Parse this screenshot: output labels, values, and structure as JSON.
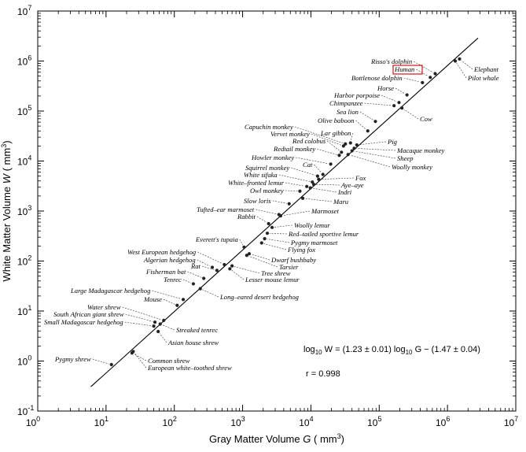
{
  "chart_data": {
    "type": "scatter",
    "xlabel": "Gray Matter Volume",
    "xlabel_var": "G",
    "xlabel_unit": "( mm",
    "xlabel_unit_exp": "3",
    "xlabel_unit_close": ")",
    "ylabel": "White Matter Volume",
    "ylabel_var": "W",
    "ylabel_unit": "( mm",
    "ylabel_unit_exp": "3",
    "ylabel_unit_close": ")",
    "xscale": "log",
    "yscale": "log",
    "xlim": [
      1,
      10000000
    ],
    "ylim": [
      0.1,
      10000000
    ],
    "x_ticks": [
      {
        "base": "10",
        "exp": "0",
        "value": 1
      },
      {
        "base": "10",
        "exp": "1",
        "value": 10
      },
      {
        "base": "10",
        "exp": "2",
        "value": 100
      },
      {
        "base": "10",
        "exp": "3",
        "value": 1000
      },
      {
        "base": "10",
        "exp": "4",
        "value": 10000
      },
      {
        "base": "10",
        "exp": "5",
        "value": 100000
      },
      {
        "base": "10",
        "exp": "6",
        "value": 1000000
      },
      {
        "base": "10",
        "exp": "7",
        "value": 10000000
      }
    ],
    "y_ticks": [
      {
        "base": "10",
        "exp": "-1",
        "value": 0.1
      },
      {
        "base": "10",
        "exp": "0",
        "value": 1
      },
      {
        "base": "10",
        "exp": "1",
        "value": 10
      },
      {
        "base": "10",
        "exp": "2",
        "value": 100
      },
      {
        "base": "10",
        "exp": "3",
        "value": 1000
      },
      {
        "base": "10",
        "exp": "4",
        "value": 10000
      },
      {
        "base": "10",
        "exp": "5",
        "value": 100000
      },
      {
        "base": "10",
        "exp": "6",
        "value": 1000000
      },
      {
        "base": "10",
        "exp": "7",
        "value": 10000000
      }
    ],
    "grid": false,
    "fit_line": {
      "slope": 1.23,
      "intercept_log10": -1.47,
      "x_range": [
        6,
        2800000
      ]
    },
    "equation": {
      "lhs": "log",
      "sub1": "10",
      "mid": " W = (1.23 ± 0.01) log",
      "sub2": "10",
      "rhs": " G − (1.47 ± 0.04)"
    },
    "r_label": "r = 0.998",
    "highlight_label": "Human",
    "points": [
      {
        "label": "Pygmy shrew",
        "x": 12,
        "y": 0.85
      },
      {
        "label": "Common shrew",
        "x": 24,
        "y": 1.45
      },
      {
        "label": "European white–toothed shrew",
        "x": 25,
        "y": 1.55
      },
      {
        "label": "Asian house shrew",
        "x": 58,
        "y": 3.9
      },
      {
        "label": "Streaked tenrec",
        "x": 62,
        "y": 5.5
      },
      {
        "label": "Small Madagascar hedgehog",
        "x": 50,
        "y": 5.0
      },
      {
        "label": "South African giant shrew",
        "x": 52,
        "y": 6.0
      },
      {
        "label": "Water shrew",
        "x": 70,
        "y": 6.5
      },
      {
        "label": "Mouse",
        "x": 110,
        "y": 13
      },
      {
        "label": "Large Madagascar hedgehog",
        "x": 135,
        "y": 17
      },
      {
        "label": "Long–eared desert hedgehog",
        "x": 240,
        "y": 28
      },
      {
        "label": "Tenrec",
        "x": 190,
        "y": 35
      },
      {
        "label": "Fisherman bat",
        "x": 270,
        "y": 45
      },
      {
        "label": "Rat",
        "x": 420,
        "y": 65
      },
      {
        "label": "Algerian hedgehog",
        "x": 360,
        "y": 75
      },
      {
        "label": "Lesser mouse lemur",
        "x": 650,
        "y": 70
      },
      {
        "label": "Tree shrew",
        "x": 700,
        "y": 80
      },
      {
        "label": "West European hedgehog",
        "x": 540,
        "y": 85
      },
      {
        "label": "Tarsier",
        "x": 1150,
        "y": 130
      },
      {
        "label": "Dwarf bushbaby",
        "x": 1250,
        "y": 140
      },
      {
        "label": "Everett's tupaia",
        "x": 1050,
        "y": 190
      },
      {
        "label": "Flying fox",
        "x": 1900,
        "y": 230
      },
      {
        "label": "Pygmy marmoset",
        "x": 2100,
        "y": 280
      },
      {
        "label": "Red–tailed sportive lemur",
        "x": 2300,
        "y": 360
      },
      {
        "label": "Woolly lemur",
        "x": 2700,
        "y": 470
      },
      {
        "label": "Rabbit",
        "x": 2400,
        "y": 560
      },
      {
        "label": "Marmoset",
        "x": 3600,
        "y": 800
      },
      {
        "label": "Tufted–ear marmoset",
        "x": 3400,
        "y": 850
      },
      {
        "label": "Slow loris",
        "x": 4800,
        "y": 1400
      },
      {
        "label": "Maru",
        "x": 7600,
        "y": 1800
      },
      {
        "label": "Owl monkey",
        "x": 6900,
        "y": 2500
      },
      {
        "label": "Indri",
        "x": 9800,
        "y": 2900
      },
      {
        "label": "White–fronted lemur",
        "x": 8700,
        "y": 3100
      },
      {
        "label": "Aye–aye",
        "x": 11000,
        "y": 3400
      },
      {
        "label": "White sifaka",
        "x": 10500,
        "y": 3800
      },
      {
        "label": "Fox",
        "x": 13000,
        "y": 4300
      },
      {
        "label": "Squirrel monkey",
        "x": 12500,
        "y": 5000
      },
      {
        "label": "Cat",
        "x": 15000,
        "y": 5400
      },
      {
        "label": "Howler monkey",
        "x": 19500,
        "y": 8700
      },
      {
        "label": "Redtail monkey",
        "x": 26000,
        "y": 13000
      },
      {
        "label": "Woolly monkey",
        "x": 35000,
        "y": 13500
      },
      {
        "label": "Red colobus",
        "x": 28000,
        "y": 15000
      },
      {
        "label": "Sheep",
        "x": 40000,
        "y": 16000
      },
      {
        "label": "Macaque monkey",
        "x": 43000,
        "y": 18000
      },
      {
        "label": "Pig",
        "x": 47000,
        "y": 21000
      },
      {
        "label": "Lar gibbon",
        "x": 38000,
        "y": 23000
      },
      {
        "label": "Vervet monkey",
        "x": 30000,
        "y": 20000
      },
      {
        "label": "Capuchin monkey",
        "x": 32000,
        "y": 22000
      },
      {
        "label": "Olive baboon",
        "x": 68000,
        "y": 40000
      },
      {
        "label": "Sea lion",
        "x": 88000,
        "y": 62000
      },
      {
        "label": "Cow",
        "x": 215000,
        "y": 115000
      },
      {
        "label": "Chimpanzee",
        "x": 165000,
        "y": 128000
      },
      {
        "label": "Harbor porpoise",
        "x": 195000,
        "y": 148000
      },
      {
        "label": "Horse",
        "x": 255000,
        "y": 210000
      },
      {
        "label": "Bottlenose dolphin",
        "x": 430000,
        "y": 370000
      },
      {
        "label": "Human",
        "x": 560000,
        "y": 470000
      },
      {
        "label": "Risso's dolphin",
        "x": 660000,
        "y": 560000
      },
      {
        "label": "Pilot whale",
        "x": 1300000,
        "y": 1000000
      },
      {
        "label": "Elephant",
        "x": 1500000,
        "y": 1100000
      }
    ]
  }
}
